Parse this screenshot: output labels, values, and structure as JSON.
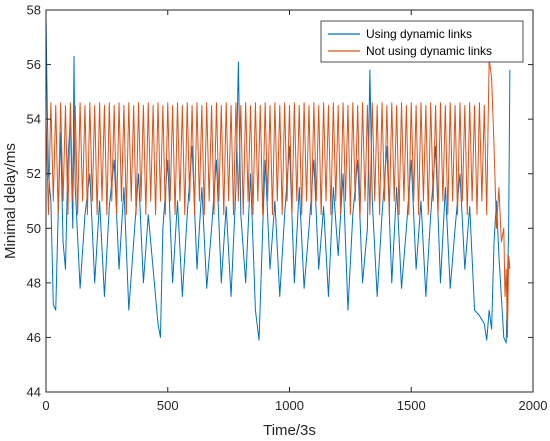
{
  "chart_data": {
    "type": "line",
    "title": "",
    "xlabel": "Time/3s",
    "ylabel": "Minimal delay/ms",
    "xlim": [
      0,
      2000
    ],
    "ylim": [
      44,
      58
    ],
    "xticks": [
      0,
      500,
      1000,
      1500,
      2000
    ],
    "yticks": [
      44,
      46,
      48,
      50,
      52,
      54,
      56,
      58
    ],
    "grid": false,
    "legend_position": "top-right",
    "series": [
      {
        "name": "Using dynamic links",
        "color": "#0072BD",
        "description": "Dense fluctuation mostly between about 47 and 54 ms from t=0 to t~1800, occasional spikes up to ~56 ms and dips to ~46 ms; initial value ~57.8 ms; drops to ~45.8 ms near t~1900 then rises back to ~55.8 ms.",
        "points": [
          [
            0,
            57.8
          ],
          [
            5,
            54.5
          ],
          [
            10,
            52.0
          ],
          [
            20,
            51.0
          ],
          [
            30,
            47.2
          ],
          [
            40,
            47.0
          ],
          [
            50,
            50.5
          ],
          [
            60,
            53.5
          ],
          [
            70,
            49.5
          ],
          [
            80,
            48.5
          ],
          [
            90,
            52.5
          ],
          [
            100,
            54.0
          ],
          [
            110,
            50.0
          ],
          [
            115,
            56.3
          ],
          [
            120,
            51.5
          ],
          [
            140,
            47.8
          ],
          [
            160,
            50.5
          ],
          [
            180,
            52.0
          ],
          [
            200,
            48.0
          ],
          [
            220,
            51.0
          ],
          [
            240,
            47.5
          ],
          [
            260,
            50.8
          ],
          [
            280,
            52.5
          ],
          [
            300,
            48.5
          ],
          [
            320,
            51.5
          ],
          [
            340,
            47.0
          ],
          [
            360,
            49.5
          ],
          [
            380,
            52.0
          ],
          [
            400,
            48.0
          ],
          [
            420,
            50.5
          ],
          [
            440,
            48.5
          ],
          [
            460,
            46.5
          ],
          [
            470,
            46.0
          ],
          [
            480,
            50.0
          ],
          [
            500,
            52.5
          ],
          [
            520,
            48.0
          ],
          [
            540,
            51.0
          ],
          [
            560,
            47.5
          ],
          [
            580,
            50.5
          ],
          [
            600,
            53.0
          ],
          [
            620,
            48.5
          ],
          [
            640,
            51.5
          ],
          [
            660,
            47.8
          ],
          [
            680,
            50.0
          ],
          [
            700,
            52.5
          ],
          [
            720,
            48.0
          ],
          [
            740,
            50.8
          ],
          [
            760,
            47.5
          ],
          [
            780,
            51.5
          ],
          [
            790,
            56.1
          ],
          [
            800,
            50.5
          ],
          [
            820,
            48.0
          ],
          [
            840,
            52.0
          ],
          [
            860,
            47.0
          ],
          [
            875,
            45.9
          ],
          [
            890,
            50.0
          ],
          [
            900,
            52.5
          ],
          [
            920,
            48.5
          ],
          [
            940,
            51.0
          ],
          [
            960,
            47.5
          ],
          [
            980,
            50.5
          ],
          [
            1000,
            53.0
          ],
          [
            1020,
            48.0
          ],
          [
            1040,
            51.5
          ],
          [
            1060,
            47.8
          ],
          [
            1080,
            50.0
          ],
          [
            1100,
            52.5
          ],
          [
            1120,
            48.5
          ],
          [
            1140,
            50.8
          ],
          [
            1160,
            47.5
          ],
          [
            1180,
            51.5
          ],
          [
            1200,
            49.0
          ],
          [
            1220,
            52.0
          ],
          [
            1240,
            47.0
          ],
          [
            1260,
            50.5
          ],
          [
            1280,
            52.5
          ],
          [
            1300,
            48.0
          ],
          [
            1320,
            50.0
          ],
          [
            1330,
            55.8
          ],
          [
            1340,
            51.0
          ],
          [
            1360,
            47.5
          ],
          [
            1380,
            50.5
          ],
          [
            1400,
            53.0
          ],
          [
            1420,
            48.0
          ],
          [
            1440,
            51.5
          ],
          [
            1460,
            47.8
          ],
          [
            1480,
            50.0
          ],
          [
            1500,
            52.5
          ],
          [
            1520,
            48.5
          ],
          [
            1540,
            51.0
          ],
          [
            1560,
            47.5
          ],
          [
            1580,
            50.5
          ],
          [
            1600,
            53.0
          ],
          [
            1620,
            48.0
          ],
          [
            1640,
            51.5
          ],
          [
            1660,
            47.8
          ],
          [
            1680,
            50.0
          ],
          [
            1700,
            52.0
          ],
          [
            1720,
            48.5
          ],
          [
            1740,
            50.8
          ],
          [
            1760,
            47.0
          ],
          [
            1780,
            46.8
          ],
          [
            1800,
            46.5
          ],
          [
            1810,
            45.9
          ],
          [
            1820,
            47.0
          ],
          [
            1830,
            46.3
          ],
          [
            1840,
            49.5
          ],
          [
            1850,
            51.0
          ],
          [
            1860,
            49.0
          ],
          [
            1870,
            47.5
          ],
          [
            1880,
            46.0
          ],
          [
            1890,
            45.8
          ],
          [
            1900,
            50.0
          ],
          [
            1905,
            55.8
          ]
        ]
      },
      {
        "name": "Not using dynamic links",
        "color": "#D95319",
        "description": "Periodic oscillation between about 50.5 and 54.6 ms from t=0 to t~1800; rises to ~56.2 ms near t~1820, then drops steeply to ~46 ms near t~1900 and recovers to ~48.5 ms.",
        "points": [
          [
            0,
            54.0
          ],
          [
            10,
            50.5
          ],
          [
            20,
            54.6
          ],
          [
            30,
            51.0
          ],
          [
            40,
            54.5
          ],
          [
            50,
            50.5
          ],
          [
            60,
            54.6
          ],
          [
            70,
            51.0
          ],
          [
            80,
            54.5
          ],
          [
            90,
            50.5
          ],
          [
            100,
            54.6
          ],
          [
            110,
            51.0
          ],
          [
            120,
            54.5
          ],
          [
            130,
            50.5
          ],
          [
            140,
            54.6
          ],
          [
            150,
            51.0
          ],
          [
            160,
            54.5
          ],
          [
            170,
            50.5
          ],
          [
            180,
            54.6
          ],
          [
            190,
            51.0
          ],
          [
            200,
            54.5
          ],
          [
            210,
            50.5
          ],
          [
            220,
            54.6
          ],
          [
            230,
            51.0
          ],
          [
            240,
            54.5
          ],
          [
            250,
            50.5
          ],
          [
            260,
            54.6
          ],
          [
            270,
            51.0
          ],
          [
            280,
            54.5
          ],
          [
            290,
            50.5
          ],
          [
            300,
            54.6
          ],
          [
            310,
            51.0
          ],
          [
            320,
            54.5
          ],
          [
            330,
            50.5
          ],
          [
            340,
            54.6
          ],
          [
            350,
            51.0
          ],
          [
            360,
            54.5
          ],
          [
            370,
            50.5
          ],
          [
            380,
            54.6
          ],
          [
            390,
            51.0
          ],
          [
            400,
            54.5
          ],
          [
            410,
            50.5
          ],
          [
            420,
            54.6
          ],
          [
            430,
            51.0
          ],
          [
            440,
            54.5
          ],
          [
            450,
            50.5
          ],
          [
            460,
            54.6
          ],
          [
            470,
            51.0
          ],
          [
            480,
            54.5
          ],
          [
            490,
            50.5
          ],
          [
            500,
            54.6
          ],
          [
            510,
            51.0
          ],
          [
            520,
            54.5
          ],
          [
            530,
            50.5
          ],
          [
            540,
            54.6
          ],
          [
            550,
            51.0
          ],
          [
            560,
            54.5
          ],
          [
            570,
            50.5
          ],
          [
            580,
            54.6
          ],
          [
            590,
            51.0
          ],
          [
            600,
            54.5
          ],
          [
            610,
            50.5
          ],
          [
            620,
            54.6
          ],
          [
            630,
            51.0
          ],
          [
            640,
            54.5
          ],
          [
            650,
            50.5
          ],
          [
            660,
            54.6
          ],
          [
            670,
            51.0
          ],
          [
            680,
            54.5
          ],
          [
            690,
            50.5
          ],
          [
            700,
            54.6
          ],
          [
            710,
            51.0
          ],
          [
            720,
            54.5
          ],
          [
            730,
            50.5
          ],
          [
            740,
            54.6
          ],
          [
            750,
            51.0
          ],
          [
            760,
            54.5
          ],
          [
            770,
            50.5
          ],
          [
            780,
            54.6
          ],
          [
            790,
            51.0
          ],
          [
            800,
            54.5
          ],
          [
            810,
            50.5
          ],
          [
            820,
            54.6
          ],
          [
            830,
            51.0
          ],
          [
            840,
            54.5
          ],
          [
            850,
            50.5
          ],
          [
            860,
            54.6
          ],
          [
            870,
            51.0
          ],
          [
            880,
            54.5
          ],
          [
            890,
            50.5
          ],
          [
            900,
            54.6
          ],
          [
            910,
            51.0
          ],
          [
            920,
            54.5
          ],
          [
            930,
            50.5
          ],
          [
            940,
            54.6
          ],
          [
            950,
            51.0
          ],
          [
            960,
            54.5
          ],
          [
            970,
            50.5
          ],
          [
            980,
            54.6
          ],
          [
            990,
            51.0
          ],
          [
            1000,
            54.5
          ],
          [
            1010,
            50.5
          ],
          [
            1020,
            54.6
          ],
          [
            1030,
            51.0
          ],
          [
            1040,
            54.5
          ],
          [
            1050,
            50.5
          ],
          [
            1060,
            54.6
          ],
          [
            1070,
            51.0
          ],
          [
            1080,
            54.5
          ],
          [
            1090,
            50.5
          ],
          [
            1100,
            54.6
          ],
          [
            1110,
            51.0
          ],
          [
            1120,
            54.5
          ],
          [
            1130,
            50.5
          ],
          [
            1140,
            54.6
          ],
          [
            1150,
            51.0
          ],
          [
            1160,
            54.5
          ],
          [
            1170,
            50.5
          ],
          [
            1180,
            54.6
          ],
          [
            1190,
            51.0
          ],
          [
            1200,
            54.5
          ],
          [
            1210,
            50.5
          ],
          [
            1220,
            54.6
          ],
          [
            1230,
            51.0
          ],
          [
            1240,
            54.5
          ],
          [
            1250,
            50.5
          ],
          [
            1260,
            54.6
          ],
          [
            1270,
            51.0
          ],
          [
            1280,
            54.5
          ],
          [
            1290,
            50.5
          ],
          [
            1300,
            54.6
          ],
          [
            1310,
            51.0
          ],
          [
            1320,
            54.5
          ],
          [
            1330,
            50.5
          ],
          [
            1340,
            54.6
          ],
          [
            1350,
            51.0
          ],
          [
            1360,
            54.5
          ],
          [
            1370,
            50.5
          ],
          [
            1380,
            54.6
          ],
          [
            1390,
            51.0
          ],
          [
            1400,
            54.5
          ],
          [
            1410,
            50.5
          ],
          [
            1420,
            54.6
          ],
          [
            1430,
            51.0
          ],
          [
            1440,
            54.5
          ],
          [
            1450,
            50.5
          ],
          [
            1460,
            54.6
          ],
          [
            1470,
            51.0
          ],
          [
            1480,
            54.5
          ],
          [
            1490,
            50.5
          ],
          [
            1500,
            54.6
          ],
          [
            1510,
            51.0
          ],
          [
            1520,
            54.5
          ],
          [
            1530,
            50.5
          ],
          [
            1540,
            54.6
          ],
          [
            1550,
            51.0
          ],
          [
            1560,
            54.5
          ],
          [
            1570,
            50.5
          ],
          [
            1580,
            54.6
          ],
          [
            1590,
            51.0
          ],
          [
            1600,
            54.5
          ],
          [
            1610,
            50.5
          ],
          [
            1620,
            54.6
          ],
          [
            1630,
            51.0
          ],
          [
            1640,
            54.5
          ],
          [
            1650,
            50.5
          ],
          [
            1660,
            54.6
          ],
          [
            1670,
            51.0
          ],
          [
            1680,
            54.5
          ],
          [
            1690,
            50.5
          ],
          [
            1700,
            54.6
          ],
          [
            1710,
            51.0
          ],
          [
            1720,
            54.5
          ],
          [
            1730,
            50.5
          ],
          [
            1740,
            54.6
          ],
          [
            1750,
            51.0
          ],
          [
            1760,
            54.5
          ],
          [
            1770,
            50.5
          ],
          [
            1780,
            54.6
          ],
          [
            1790,
            51.0
          ],
          [
            1800,
            54.5
          ],
          [
            1810,
            50.5
          ],
          [
            1815,
            53.5
          ],
          [
            1820,
            56.2
          ],
          [
            1830,
            55.5
          ],
          [
            1840,
            53.0
          ],
          [
            1850,
            50.0
          ],
          [
            1860,
            51.5
          ],
          [
            1870,
            49.5
          ],
          [
            1880,
            50.0
          ],
          [
            1885,
            47.5
          ],
          [
            1890,
            48.5
          ],
          [
            1895,
            46.0
          ],
          [
            1900,
            49.0
          ],
          [
            1905,
            48.5
          ]
        ]
      }
    ]
  }
}
